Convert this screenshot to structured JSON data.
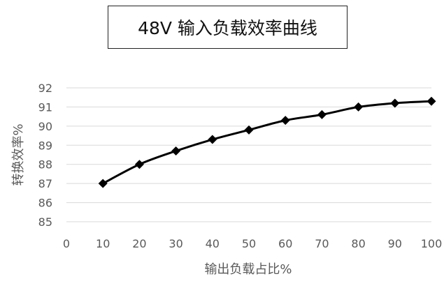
{
  "chart_data": {
    "type": "line",
    "title": "48V 输入负载效率曲线",
    "xlabel": "输出负载占比%",
    "ylabel": "转换效率%",
    "x": [
      10,
      20,
      30,
      40,
      50,
      60,
      70,
      80,
      90,
      100
    ],
    "series": [
      {
        "values": [
          87.0,
          88.0,
          88.7,
          89.3,
          89.8,
          90.3,
          90.6,
          91.0,
          91.2,
          91.3
        ]
      }
    ],
    "xlim": [
      0,
      100
    ],
    "ylim": [
      85,
      92
    ],
    "xticks": [
      0,
      10,
      20,
      30,
      40,
      50,
      60,
      70,
      80,
      90,
      100
    ],
    "yticks": [
      85,
      86,
      87,
      88,
      89,
      90,
      91,
      92
    ],
    "grid": "horizontal",
    "legend": "none",
    "line_color": "#000000",
    "grid_color": "#d9d9d9",
    "marker": "diamond"
  }
}
